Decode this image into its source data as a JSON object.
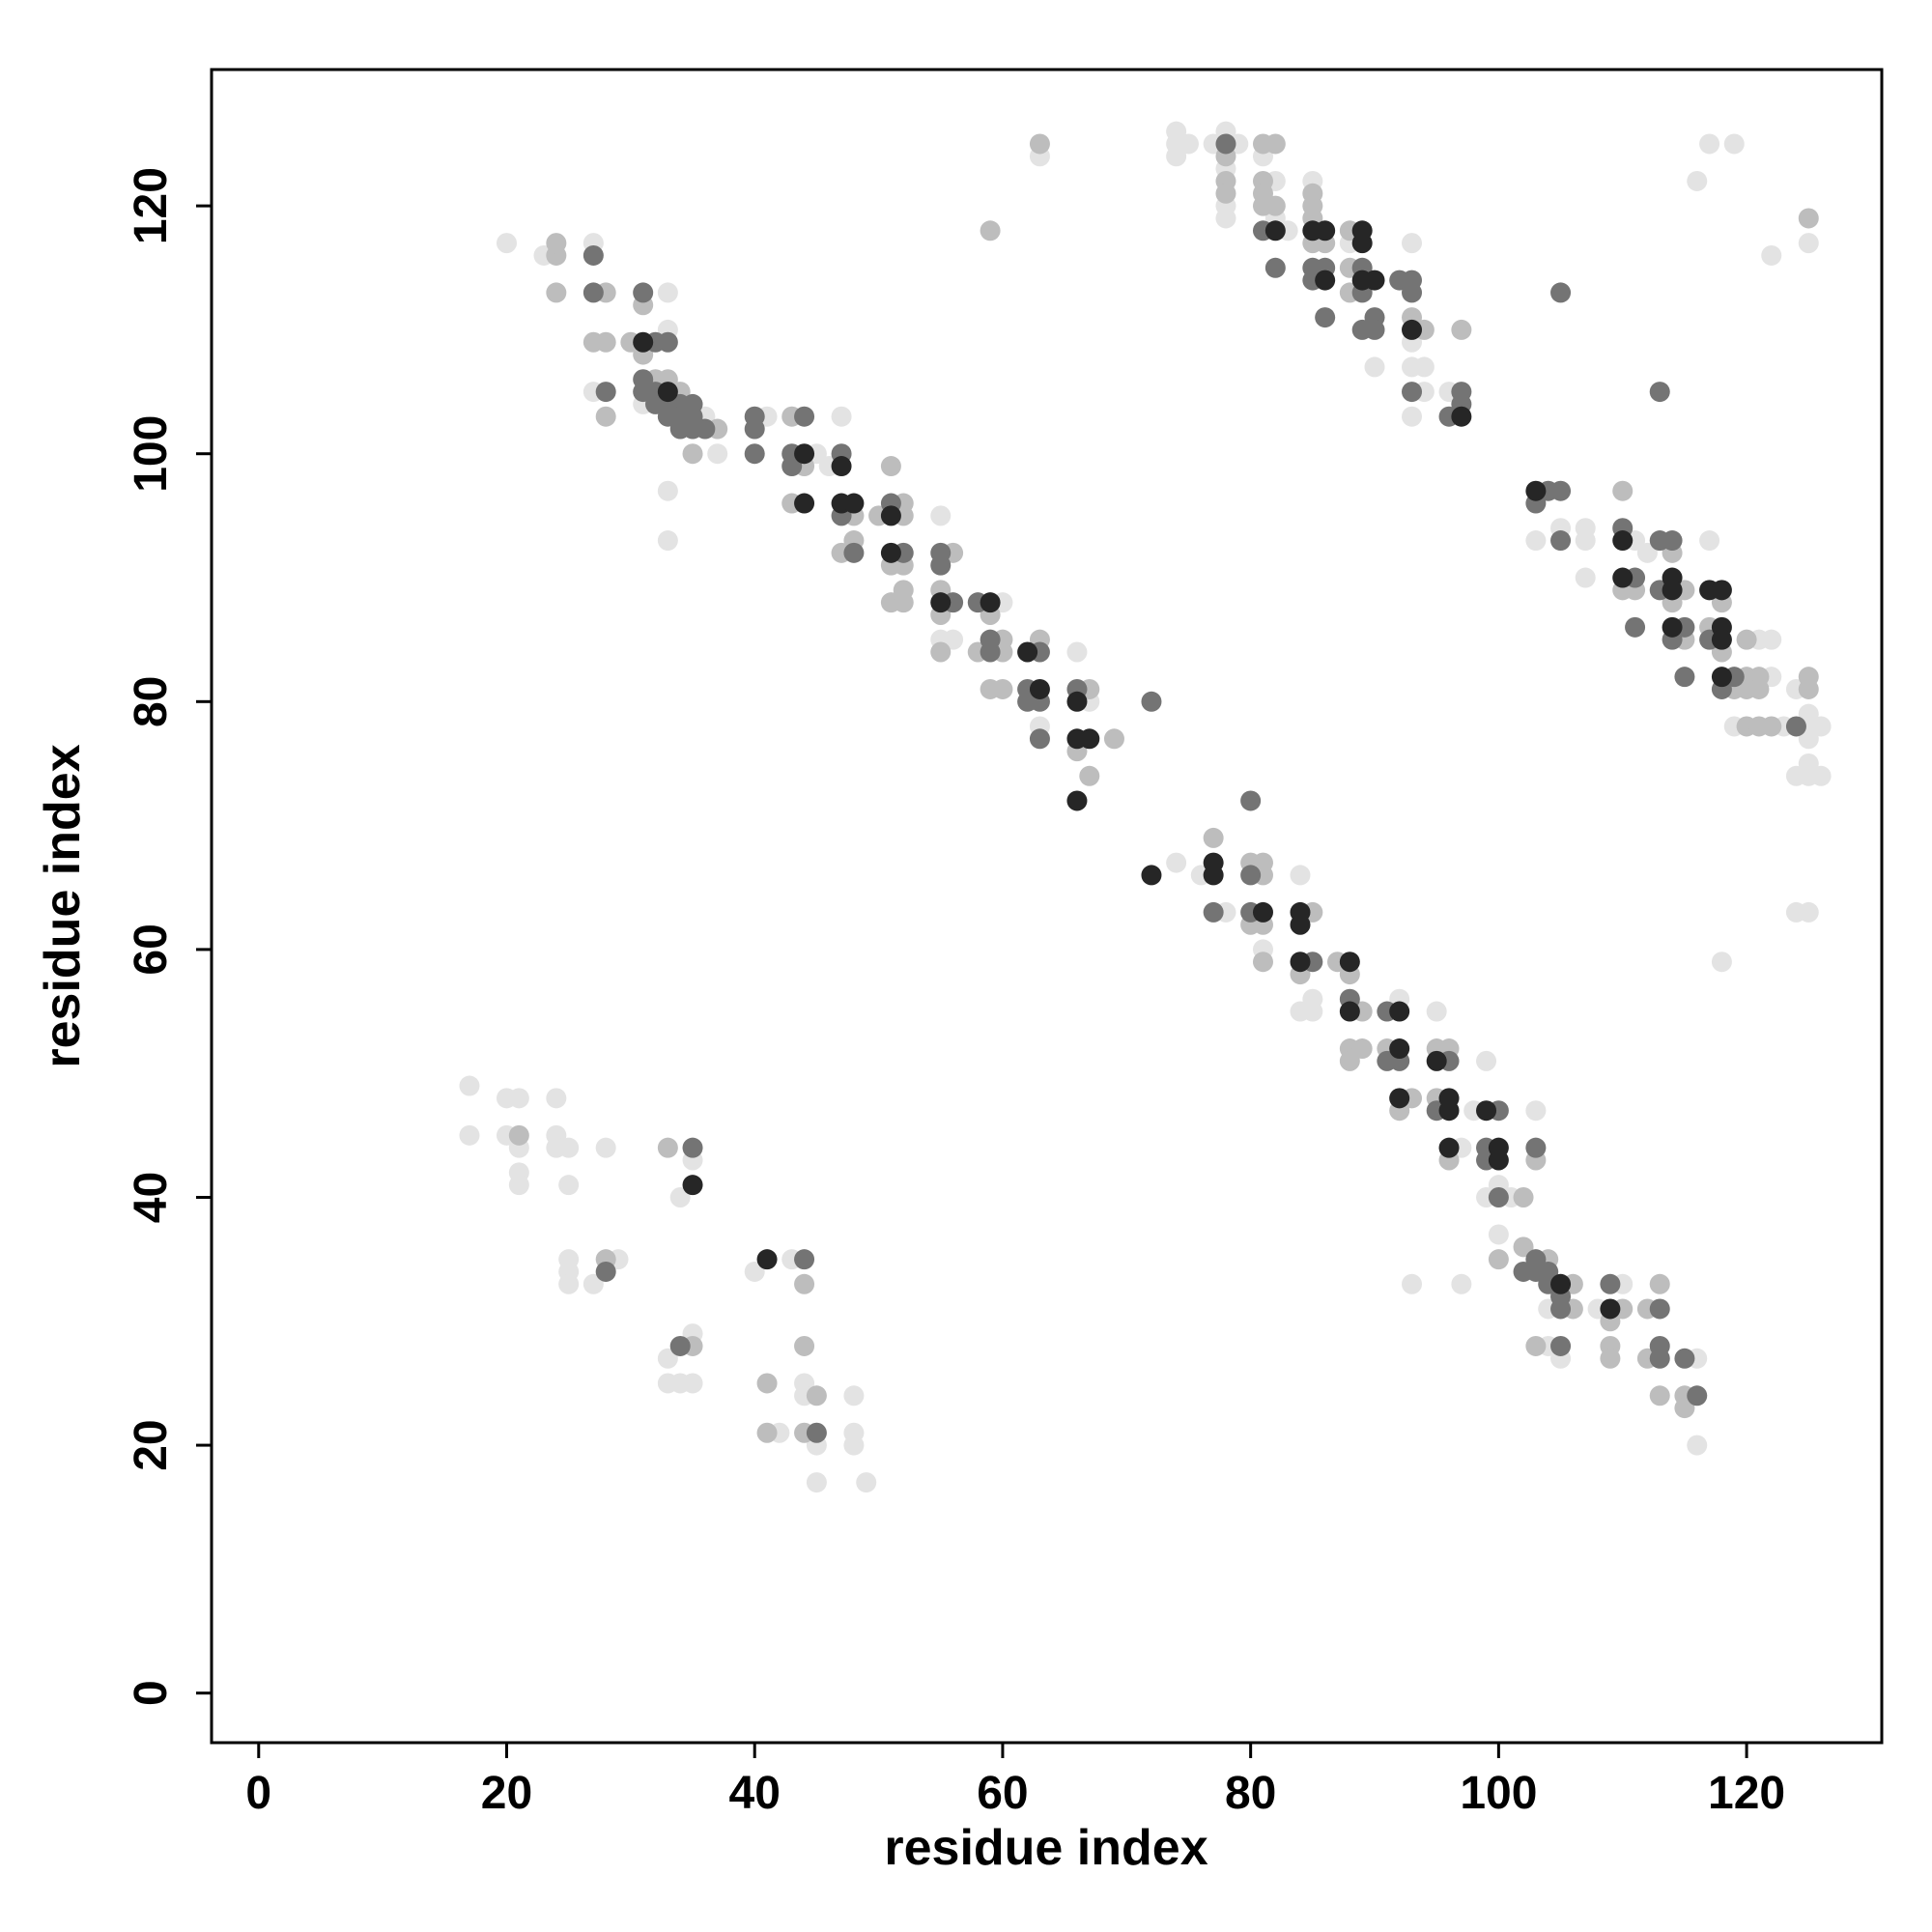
{
  "chart_data": {
    "type": "scatter",
    "xlabel": "residue index",
    "ylabel": "residue index",
    "xlim": [
      -3.8,
      130.9
    ],
    "ylim": [
      -4,
      131
    ],
    "xticks": [
      0,
      20,
      40,
      60,
      80,
      100,
      120
    ],
    "yticks": [
      0,
      20,
      40,
      60,
      80,
      100,
      120
    ],
    "grid": false,
    "series": [
      {
        "color": "#e3e3e3",
        "x": [
          20,
          23,
          27,
          33,
          33,
          27,
          36,
          37,
          33,
          33,
          31,
          41,
          45,
          46,
          47,
          55,
          55,
          56,
          60,
          63,
          66,
          67,
          74,
          76,
          78,
          81,
          84,
          84,
          85,
          85,
          92,
          95,
          97,
          98,
          99,
          99,
          101,
          100,
          103,
          100,
          104,
          104,
          105,
          108,
          110,
          116,
          116,
          93,
          97,
          74,
          74,
          74,
          75,
          77,
          78,
          78,
          78,
          78,
          79,
          81,
          82,
          82,
          83,
          85,
          88,
          90,
          93,
          93,
          93,
          94,
          94,
          93,
          96,
          63,
          105,
          103,
          107,
          107,
          107,
          111,
          117,
          121,
          122,
          122,
          119,
          123,
          125,
          124,
          125,
          125,
          124,
          125,
          125,
          126,
          126,
          124,
          125,
          116,
          117,
          119,
          122,
          125,
          118,
          112,
          17,
          17,
          20,
          21,
          20,
          21,
          21,
          21,
          24,
          24,
          24,
          25,
          25,
          28,
          25,
          25,
          25,
          27,
          29,
          35,
          34,
          33,
          35,
          33,
          34,
          35,
          40,
          43,
          44,
          44,
          42,
          45,
          48,
          48,
          48,
          45,
          49
        ],
        "values": [
          117,
          116,
          117,
          113,
          110,
          105,
          103,
          100,
          97,
          93,
          104,
          103,
          100,
          99,
          103,
          95,
          85,
          85,
          88,
          78,
          84,
          80,
          67,
          66,
          63,
          60,
          66,
          55,
          56,
          55,
          56,
          55,
          44,
          47,
          51,
          40,
          40,
          41,
          47,
          37,
          31,
          28,
          27,
          31,
          33,
          27,
          20,
          33,
          33,
          126,
          125,
          124,
          125,
          125,
          126,
          123,
          120,
          119,
          125,
          124,
          122,
          119,
          118,
          122,
          117,
          107,
          117,
          109,
          107,
          107,
          105,
          103,
          105,
          124,
          94,
          93,
          94,
          93,
          90,
          93,
          93,
          85,
          82,
          85,
          78,
          78,
          78,
          81,
          79,
          77,
          74,
          75,
          74,
          78,
          74,
          63,
          63,
          122,
          125,
          125,
          116,
          117,
          59,
          92,
          49,
          45,
          48,
          48,
          45,
          44,
          42,
          41,
          48,
          45,
          44,
          44,
          41,
          44,
          35,
          34,
          33,
          33,
          35,
          43,
          40,
          27,
          29,
          25,
          25,
          25,
          34,
          35,
          25,
          24,
          21,
          20,
          24,
          21,
          20,
          17,
          17
        ]
      },
      {
        "color": "#bdbdbd",
        "x": [
          24,
          24,
          24,
          28,
          31,
          27,
          28,
          30,
          31,
          32,
          33,
          34,
          28,
          37,
          35,
          43,
          44,
          43,
          48,
          48,
          47,
          50,
          52,
          52,
          51,
          51,
          52,
          52,
          51,
          52,
          56,
          55,
          55,
          55,
          59,
          58,
          60,
          60,
          59,
          60,
          63,
          67,
          66,
          67,
          69,
          77,
          80,
          81,
          81,
          80,
          81,
          81,
          85,
          84,
          87,
          88,
          89,
          88,
          89,
          88,
          91,
          93,
          92,
          95,
          96,
          95,
          96,
          102,
          103,
          100,
          102,
          104,
          106,
          106,
          103,
          109,
          110,
          109,
          109,
          112,
          113,
          112,
          113,
          115,
          115,
          78,
          78,
          78,
          81,
          82,
          81,
          81,
          81,
          82,
          85,
          85,
          85,
          85,
          86,
          88,
          88,
          88,
          93,
          94,
          97,
          63,
          59,
          110,
          110,
          111,
          114,
          115,
          115,
          114,
          117,
          118,
          119,
          118,
          120,
          120,
          121,
          120,
          121,
          120,
          121,
          122,
          125,
          125,
          125,
          21,
          28,
          33,
          35,
          44,
          44,
          41,
          45,
          41,
          44
        ],
        "values": [
          116,
          117,
          113,
          113,
          112,
          109,
          109,
          109,
          108,
          106,
          106,
          105,
          103,
          102,
          100,
          103,
          99,
          96,
          95,
          93,
          92,
          95,
          96,
          95,
          99,
          91,
          91,
          89,
          88,
          88,
          92,
          89,
          87,
          84,
          87,
          84,
          85,
          84,
          81,
          81,
          85,
          81,
          76,
          74,
          77,
          69,
          67,
          67,
          66,
          62,
          62,
          59,
          63,
          58,
          59,
          58,
          55,
          52,
          52,
          51,
          52,
          48,
          47,
          52,
          52,
          48,
          43,
          40,
          43,
          35,
          36,
          35,
          33,
          31,
          28,
          30,
          31,
          28,
          27,
          31,
          33,
          27,
          24,
          24,
          23,
          124,
          122,
          121,
          125,
          125,
          122,
          121,
          120,
          120,
          121,
          120,
          119,
          117,
          117,
          118,
          115,
          113,
          111,
          110,
          110,
          125,
          118,
          97,
          89,
          89,
          92,
          89,
          85,
          88,
          86,
          88,
          81,
          84,
          85,
          82,
          82,
          81,
          81,
          78,
          78,
          78,
          82,
          81,
          119,
          45,
          35,
          44,
          28,
          33,
          28,
          25,
          24,
          21,
          21
        ]
      },
      {
        "color": "#747474",
        "x": [
          27,
          27,
          31,
          32,
          33,
          28,
          31,
          31,
          32,
          32,
          33,
          34,
          35,
          33,
          34,
          35,
          34,
          35,
          36,
          40,
          40,
          40,
          44,
          43,
          43,
          47,
          47,
          48,
          51,
          52,
          55,
          55,
          56,
          58,
          59,
          59,
          63,
          62,
          62,
          63,
          63,
          66,
          72,
          77,
          80,
          80,
          80,
          85,
          88,
          91,
          91,
          92,
          96,
          95,
          100,
          99,
          99,
          100,
          103,
          103,
          102,
          103,
          104,
          104,
          105,
          105,
          105,
          109,
          113,
          113,
          113,
          115,
          116,
          78,
          81,
          82,
          85,
          86,
          85,
          86,
          89,
          89,
          90,
          89,
          90,
          92,
          93,
          93,
          93,
          97,
          97,
          96,
          105,
          113,
          104,
          105,
          103,
          105,
          110,
          111,
          111,
          113,
          114,
          113,
          115,
          114,
          115,
          117,
          119,
          118,
          124,
          28,
          35,
          34,
          44,
          45
        ],
        "values": [
          116,
          113,
          113,
          109,
          109,
          105,
          105,
          106,
          105,
          104,
          104,
          104,
          104,
          103,
          103,
          103,
          102,
          102,
          102,
          103,
          102,
          100,
          103,
          100,
          99,
          100,
          95,
          92,
          96,
          92,
          92,
          91,
          88,
          88,
          84,
          85,
          84,
          81,
          80,
          80,
          77,
          81,
          80,
          63,
          72,
          66,
          63,
          59,
          56,
          55,
          51,
          51,
          51,
          47,
          47,
          44,
          43,
          40,
          44,
          35,
          34,
          34,
          33,
          34,
          32,
          31,
          28,
          33,
          31,
          27,
          28,
          27,
          24,
          125,
          118,
          115,
          115,
          115,
          114,
          111,
          115,
          113,
          111,
          110,
          110,
          114,
          114,
          113,
          105,
          105,
          104,
          103,
          113,
          105,
          97,
          97,
          96,
          93,
          94,
          90,
          86,
          93,
          93,
          89,
          86,
          85,
          82,
          85,
          82,
          81,
          78,
          34,
          44,
          28,
          35,
          21
        ]
      },
      {
        "color": "#262626",
        "x": [
          31,
          33,
          44,
          44,
          47,
          47,
          48,
          51,
          51,
          55,
          59,
          62,
          63,
          66,
          66,
          67,
          66,
          72,
          77,
          77,
          81,
          84,
          84,
          84,
          88,
          88,
          92,
          92,
          92,
          95,
          96,
          96,
          96,
          99,
          100,
          100,
          105,
          109,
          82,
          85,
          86,
          86,
          89,
          89,
          89,
          90,
          93,
          97,
          103,
          110,
          110,
          114,
          114,
          114,
          117,
          118,
          118,
          118,
          118,
          35,
          41
        ],
        "values": [
          109,
          105,
          100,
          96,
          99,
          96,
          96,
          95,
          92,
          88,
          88,
          84,
          81,
          80,
          77,
          77,
          72,
          66,
          67,
          66,
          63,
          63,
          62,
          59,
          59,
          55,
          55,
          52,
          48,
          51,
          48,
          47,
          44,
          47,
          44,
          43,
          33,
          31,
          118,
          118,
          118,
          114,
          118,
          117,
          114,
          114,
          110,
          103,
          97,
          93,
          90,
          90,
          89,
          86,
          89,
          89,
          86,
          85,
          82,
          41,
          35
        ]
      }
    ]
  }
}
